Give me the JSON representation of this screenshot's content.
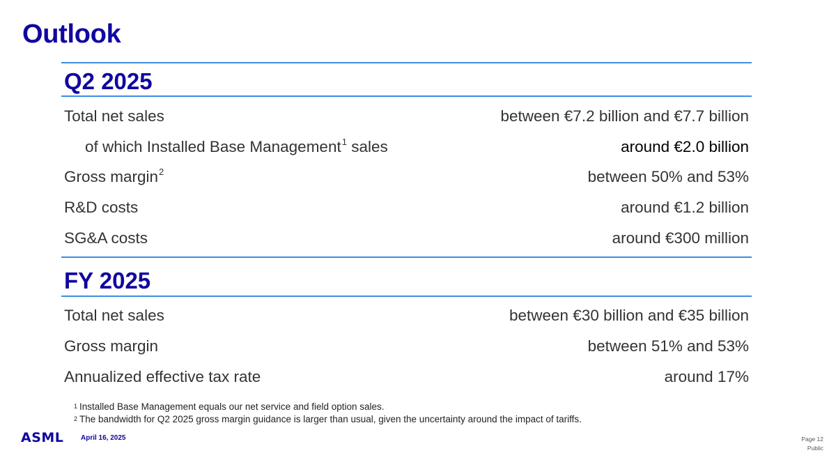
{
  "title": "Outlook",
  "q2": {
    "heading": "Q2 2025",
    "rows": [
      {
        "label": "Total net sales",
        "sup": "",
        "value": "between €7.2 billion and €7.7 billion"
      },
      {
        "label": "of which Installed Base Management",
        "sup": "1",
        "label_suffix": " sales",
        "value": "around €2.0 billion"
      },
      {
        "label": "Gross margin",
        "sup": "2",
        "value": "between 50% and 53%"
      },
      {
        "label": "R&D costs",
        "sup": "",
        "value": "around €1.2 billion"
      },
      {
        "label": "SG&A costs",
        "sup": "",
        "value": "around €300 million"
      }
    ]
  },
  "fy": {
    "heading": "FY 2025",
    "rows": [
      {
        "label": "Total net sales",
        "value": "between €30 billion and €35 billion"
      },
      {
        "label": "Gross margin",
        "value": "between 51% and 53%"
      },
      {
        "label": "Annualized effective tax rate",
        "value": "around 17%"
      }
    ]
  },
  "footnotes": [
    {
      "mark": "1",
      "text": "Installed Base Management equals our net service and field option sales."
    },
    {
      "mark": "2",
      "text": "The bandwidth for Q2 2025 gross margin guidance is larger than usual, given the uncertainty around the impact of tariffs."
    }
  ],
  "footer": {
    "logo": "ASML",
    "date": "April 16, 2025",
    "page": "Page 12",
    "classification": "Public"
  },
  "colors": {
    "brand": "#10069f",
    "rule": "#3c8ee0",
    "text": "#333333"
  }
}
